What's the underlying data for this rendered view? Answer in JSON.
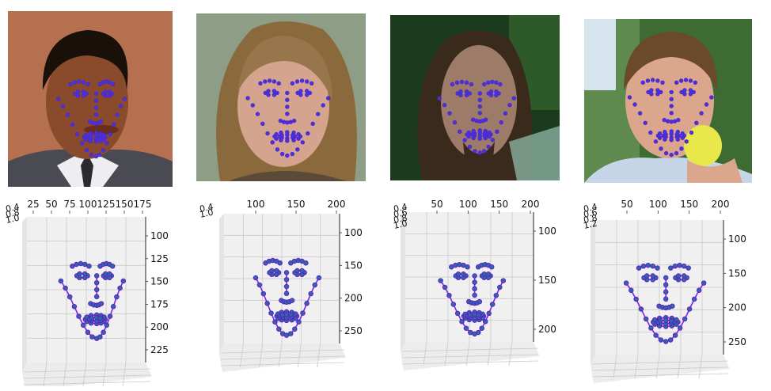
{
  "colors": {
    "landmark_fill": "#3a3ad6",
    "landmark_edge": "#6a14d0",
    "curve": "#8a1ef0",
    "pane": "#f0f0f0",
    "grid": "#c9c9c9"
  },
  "panels": [
    {
      "photo": {
        "subject": "man-suit",
        "bg": "#b8704f",
        "skin": "#8a4a2e",
        "hair": "#1e120c",
        "clothes": "#e8e8ea"
      },
      "plot": {
        "top_ticks": [
          "25",
          "50",
          "75",
          "100",
          "125",
          "150",
          "175"
        ],
        "right_ticks": [
          "100",
          "125",
          "150",
          "175",
          "200",
          "225"
        ],
        "left_ticks": [
          "0.4",
          "0.8",
          "1.0"
        ]
      }
    },
    {
      "photo": {
        "subject": "woman-long-hair",
        "bg": "#8a9a80",
        "skin": "#d2a08a",
        "hair": "#8a6a3e",
        "clothes": "#5a4a3a"
      },
      "plot": {
        "top_ticks": [
          "100",
          "150",
          "200"
        ],
        "right_ticks": [
          "100",
          "150",
          "200",
          "250"
        ],
        "left_ticks": [
          "0.4",
          "1.0"
        ]
      }
    },
    {
      "photo": {
        "subject": "man-long-hair",
        "bg": "#1e3a1c",
        "skin": "#9a7a66",
        "hair": "#3a2a1c",
        "clothes": "#2a2622"
      },
      "plot": {
        "top_ticks": [
          "50",
          "100",
          "150",
          "200"
        ],
        "right_ticks": [
          "100",
          "150",
          "200"
        ],
        "left_ticks": [
          "0.4",
          "0.6",
          "0.8",
          "1.0"
        ]
      }
    },
    {
      "photo": {
        "subject": "man-microphone",
        "bg": "#4a6a3a",
        "skin": "#dca48a",
        "hair": "#6a4a2a",
        "clothes": "#c8d8ea"
      },
      "plot": {
        "top_ticks": [
          "50",
          "100",
          "150",
          "200"
        ],
        "right_ticks": [
          "100",
          "150",
          "200",
          "250"
        ],
        "left_ticks": [
          "0.4",
          "0.6",
          "0.8",
          "1.2"
        ]
      }
    }
  ]
}
